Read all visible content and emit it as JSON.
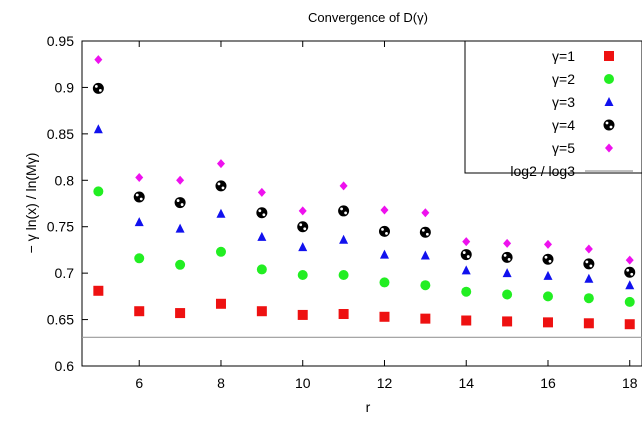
{
  "chart_data": {
    "type": "scatter",
    "title": "Convergence of D(γ)",
    "xlabel": "r",
    "ylabel": "− γ ln(x) / ln(Mγ)",
    "xlim": [
      4.6,
      18.3
    ],
    "ylim": [
      0.6,
      0.95
    ],
    "xticks": [
      6,
      8,
      10,
      12,
      14,
      16,
      18
    ],
    "yticks": [
      0.6,
      0.65,
      0.7,
      0.75,
      0.8,
      0.85,
      0.9,
      0.95
    ],
    "ytick_labels": [
      "0.6",
      "0.65",
      "0.7",
      "0.75",
      "0.8",
      "0.85",
      "0.9",
      "0.95"
    ],
    "grid": false,
    "legend_position": "top-right",
    "series": [
      {
        "name": "γ=1",
        "marker": "square",
        "color": "#ee1111",
        "x": [
          5,
          6,
          7,
          8,
          9,
          10,
          11,
          12,
          13,
          14,
          15,
          16,
          17,
          18
        ],
        "y": [
          0.681,
          0.659,
          0.657,
          0.667,
          0.659,
          0.655,
          0.656,
          0.653,
          0.651,
          0.649,
          0.648,
          0.647,
          0.646,
          0.645
        ]
      },
      {
        "name": "γ=2",
        "marker": "circle",
        "color": "#22ee22",
        "x": [
          5,
          6,
          7,
          8,
          9,
          10,
          11,
          12,
          13,
          14,
          15,
          16,
          17,
          18
        ],
        "y": [
          0.788,
          0.716,
          0.709,
          0.723,
          0.704,
          0.698,
          0.698,
          0.69,
          0.687,
          0.68,
          0.677,
          0.675,
          0.673,
          0.669
        ]
      },
      {
        "name": "γ=3",
        "marker": "triangle",
        "color": "#1111ee",
        "x": [
          5,
          6,
          7,
          8,
          9,
          10,
          11,
          12,
          13,
          14,
          15,
          16,
          17,
          18
        ],
        "y": [
          0.855,
          0.755,
          0.748,
          0.764,
          0.739,
          0.728,
          0.736,
          0.72,
          0.719,
          0.703,
          0.7,
          0.697,
          0.694,
          0.687
        ]
      },
      {
        "name": "γ=4",
        "marker": "dotted-circle",
        "color": "#000000",
        "x": [
          5,
          6,
          7,
          8,
          9,
          10,
          11,
          12,
          13,
          14,
          15,
          16,
          17,
          18
        ],
        "y": [
          0.899,
          0.782,
          0.776,
          0.794,
          0.765,
          0.75,
          0.767,
          0.745,
          0.744,
          0.72,
          0.717,
          0.715,
          0.71,
          0.701
        ]
      },
      {
        "name": "γ=5",
        "marker": "diamond",
        "color": "#ee11ee",
        "x": [
          5,
          6,
          7,
          8,
          9,
          10,
          11,
          12,
          13,
          14,
          15,
          16,
          17,
          18
        ],
        "y": [
          0.93,
          0.803,
          0.8,
          0.818,
          0.787,
          0.767,
          0.794,
          0.768,
          0.765,
          0.734,
          0.732,
          0.731,
          0.726,
          0.714
        ]
      },
      {
        "name": "log2 / log3",
        "marker": "line",
        "color": "#999999",
        "y_constant": 0.6309
      }
    ]
  }
}
